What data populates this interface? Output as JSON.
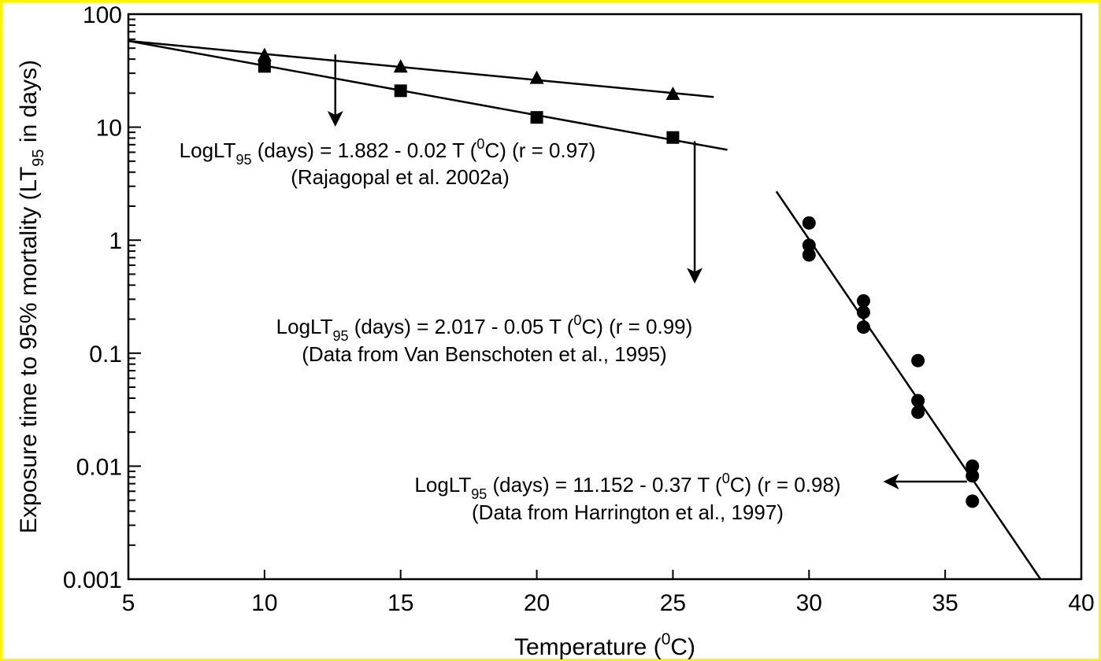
{
  "chart_data": {
    "type": "scatter",
    "yscale": "log",
    "xlim": [
      5,
      40
    ],
    "ylim": [
      0.001,
      100
    ],
    "xticks": [
      5,
      10,
      15,
      20,
      25,
      30,
      35,
      40
    ],
    "xtick_labels": [
      "5",
      "10",
      "15",
      "20",
      "25",
      "30",
      "35",
      "40"
    ],
    "yticks": [
      0.001,
      0.01,
      0.1,
      1,
      10,
      100
    ],
    "ytick_labels": [
      "0.001",
      "0.01",
      "0.1",
      "1",
      "10",
      "100"
    ],
    "xlabel": {
      "main": "Temperature (",
      "sup": "0",
      "tail": "C)"
    },
    "ylabel": {
      "main": "Exposure time to 95% mortality (LT",
      "sub": "95",
      "tail": " in days)"
    },
    "grid": false,
    "series": [
      {
        "marker": "triangle",
        "x": [
          10,
          15,
          20,
          25
        ],
        "y": [
          43,
          34,
          27,
          19.5
        ],
        "fit": {
          "x": [
            5,
            26.5
          ],
          "y": [
            58,
            18.5
          ]
        }
      },
      {
        "marker": "square",
        "x": [
          10,
          15,
          20,
          25
        ],
        "y": [
          34.5,
          21,
          12.2,
          8.1
        ],
        "fit": {
          "x": [
            5,
            27
          ],
          "y": [
            58,
            6.3
          ]
        }
      },
      {
        "marker": "circle",
        "x": [
          30,
          30,
          30,
          32,
          32,
          32,
          34,
          34,
          34,
          36,
          36,
          36
        ],
        "y": [
          1.42,
          0.9,
          0.74,
          0.29,
          0.23,
          0.17,
          0.086,
          0.038,
          0.03,
          0.01,
          0.0082,
          0.0049
        ],
        "fit": {
          "x": [
            28.8,
            38.5
          ],
          "y": [
            2.7,
            0.001
          ]
        }
      }
    ],
    "annotations": [
      {
        "lines": [
          {
            "pre": "LogLT",
            "sub": "95",
            "mid": " (days) = 1.882 - 0.02 T (",
            "sup": "0",
            "post": "C) (r = 0.97)"
          },
          {
            "pre": "(Rajagopal et al.  2002a)"
          }
        ],
        "arrow_from": [
          12.6,
          44
        ],
        "arrow_to": [
          12.6,
          10.5
        ]
      },
      {
        "lines": [
          {
            "pre": "LogLT",
            "sub": "95",
            "mid": " (days) = 2.017 - 0.05 T (",
            "sup": "0",
            "post": "C) (r = 0.99)"
          },
          {
            "pre": "(Data from Van Benschoten et al., 1995)"
          }
        ],
        "arrow_from": [
          25.8,
          7.5
        ],
        "arrow_to": [
          25.8,
          0.43
        ]
      },
      {
        "lines": [
          {
            "pre": "LogLT",
            "sub": "95",
            "mid": " (days) = 11.152 - 0.37 T (",
            "sup": "0",
            "post": "C) (r = 0.98)"
          },
          {
            "pre": "(Data from Harrington et al., 1997)"
          }
        ],
        "arrow_from": [
          35.8,
          0.0073
        ],
        "arrow_to": [
          32.8,
          0.0073
        ]
      }
    ]
  }
}
